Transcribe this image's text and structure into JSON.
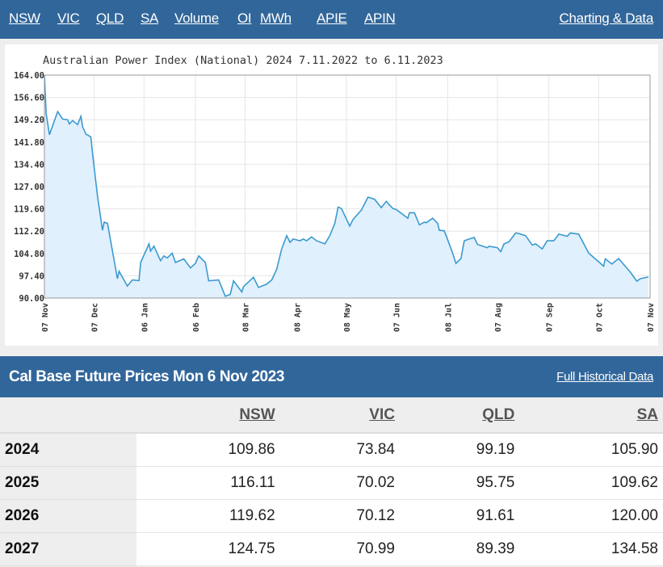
{
  "nav": {
    "items": [
      "NSW",
      "VIC",
      "QLD",
      "SA",
      "Volume",
      "OI",
      "MWh",
      "APIE",
      "APIN"
    ],
    "right_link": "Charting & Data"
  },
  "colors": {
    "nav_bg": "#31669a",
    "line": "#3a9ad0",
    "fill": "#e1f0fd"
  },
  "chart_data": {
    "type": "area",
    "title": "Australian Power Index (National) 2024 7.11.2022 to 6.11.2023",
    "xlabel": "",
    "ylabel": "",
    "xlim": [
      "2022-11-07",
      "2023-11-07"
    ],
    "ylim": [
      90,
      164
    ],
    "grid": true,
    "y_ticks": [
      "164.00",
      "156.60",
      "149.20",
      "141.80",
      "134.40",
      "127.00",
      "119.60",
      "112.20",
      "104.80",
      "97.40",
      "90.00"
    ],
    "x_ticks": [
      {
        "date": "2022-11-07",
        "label": "07 Nov"
      },
      {
        "date": "2022-12-07",
        "label": "07 Dec"
      },
      {
        "date": "2023-01-06",
        "label": "06 Jan"
      },
      {
        "date": "2023-02-06",
        "label": "06 Feb"
      },
      {
        "date": "2023-03-08",
        "label": "08 Mar"
      },
      {
        "date": "2023-04-08",
        "label": "08 Apr"
      },
      {
        "date": "2023-05-08",
        "label": "08 May"
      },
      {
        "date": "2023-06-07",
        "label": "07 Jun"
      },
      {
        "date": "2023-07-08",
        "label": "08 Jul"
      },
      {
        "date": "2023-08-07",
        "label": "07 Aug"
      },
      {
        "date": "2023-09-07",
        "label": "07 Sep"
      },
      {
        "date": "2023-10-07",
        "label": "07 Oct"
      },
      {
        "date": "2023-11-07",
        "label": "07 Nov"
      }
    ],
    "points": [
      [
        "2022-11-07",
        164.0
      ],
      [
        "2022-11-08",
        151.4
      ],
      [
        "2022-11-10",
        144.2
      ],
      [
        "2022-11-15",
        151.9
      ],
      [
        "2022-11-18",
        149.4
      ],
      [
        "2022-11-21",
        149.2
      ],
      [
        "2022-11-22",
        147.8
      ],
      [
        "2022-11-24",
        148.9
      ],
      [
        "2022-11-27",
        147.6
      ],
      [
        "2022-11-29",
        150.3
      ],
      [
        "2022-11-30",
        146.9
      ],
      [
        "2022-12-02",
        144.4
      ],
      [
        "2022-12-05",
        143.5
      ],
      [
        "2022-12-06",
        138.0
      ],
      [
        "2022-12-09",
        123.7
      ],
      [
        "2022-12-12",
        112.5
      ],
      [
        "2022-12-13",
        115.2
      ],
      [
        "2022-12-15",
        114.8
      ],
      [
        "2022-12-21",
        96.4
      ],
      [
        "2022-12-22",
        98.9
      ],
      [
        "2022-12-27",
        94.0
      ],
      [
        "2022-12-30",
        96.0
      ],
      [
        "2023-01-03",
        95.8
      ],
      [
        "2023-01-04",
        101.8
      ],
      [
        "2023-01-09",
        108.0
      ],
      [
        "2023-01-10",
        105.6
      ],
      [
        "2023-01-12",
        107.2
      ],
      [
        "2023-01-16",
        102.4
      ],
      [
        "2023-01-18",
        104.0
      ],
      [
        "2023-01-20",
        103.3
      ],
      [
        "2023-01-23",
        104.9
      ],
      [
        "2023-01-25",
        101.8
      ],
      [
        "2023-01-30",
        103.0
      ],
      [
        "2023-02-03",
        100.0
      ],
      [
        "2023-02-06",
        101.5
      ],
      [
        "2023-02-08",
        104.0
      ],
      [
        "2023-02-12",
        101.8
      ],
      [
        "2023-02-14",
        95.7
      ],
      [
        "2023-02-20",
        96.0
      ],
      [
        "2023-02-24",
        90.6
      ],
      [
        "2023-02-27",
        91.2
      ],
      [
        "2023-03-01",
        95.7
      ],
      [
        "2023-03-06",
        92.0
      ],
      [
        "2023-03-07",
        93.8
      ],
      [
        "2023-03-13",
        96.9
      ],
      [
        "2023-03-16",
        93.5
      ],
      [
        "2023-03-21",
        94.6
      ],
      [
        "2023-03-24",
        96.0
      ],
      [
        "2023-03-27",
        99.6
      ],
      [
        "2023-03-30",
        106.3
      ],
      [
        "2023-04-02",
        110.7
      ],
      [
        "2023-04-04",
        108.5
      ],
      [
        "2023-04-06",
        109.6
      ],
      [
        "2023-04-10",
        109.0
      ],
      [
        "2023-04-12",
        109.6
      ],
      [
        "2023-04-14",
        109.0
      ],
      [
        "2023-04-17",
        110.3
      ],
      [
        "2023-04-20",
        109.0
      ],
      [
        "2023-04-25",
        108.0
      ],
      [
        "2023-04-28",
        110.7
      ],
      [
        "2023-05-01",
        114.8
      ],
      [
        "2023-05-03",
        120.2
      ],
      [
        "2023-05-05",
        119.7
      ],
      [
        "2023-05-10",
        113.9
      ],
      [
        "2023-05-12",
        116.1
      ],
      [
        "2023-05-17",
        119.2
      ],
      [
        "2023-05-21",
        123.5
      ],
      [
        "2023-05-25",
        122.8
      ],
      [
        "2023-05-29",
        120.0
      ],
      [
        "2023-06-01",
        122.1
      ],
      [
        "2023-06-05",
        119.7
      ],
      [
        "2023-06-07",
        119.4
      ],
      [
        "2023-06-14",
        116.5
      ],
      [
        "2023-06-15",
        118.3
      ],
      [
        "2023-06-18",
        118.3
      ],
      [
        "2023-06-21",
        114.3
      ],
      [
        "2023-06-24",
        115.2
      ],
      [
        "2023-06-25",
        115.0
      ],
      [
        "2023-06-29",
        116.5
      ],
      [
        "2023-07-02",
        114.8
      ],
      [
        "2023-07-03",
        112.5
      ],
      [
        "2023-07-06",
        112.3
      ],
      [
        "2023-07-11",
        104.9
      ],
      [
        "2023-07-13",
        101.5
      ],
      [
        "2023-07-16",
        103.1
      ],
      [
        "2023-07-18",
        109.0
      ],
      [
        "2023-07-20",
        109.4
      ],
      [
        "2023-07-24",
        110.1
      ],
      [
        "2023-07-26",
        107.8
      ],
      [
        "2023-08-01",
        106.7
      ],
      [
        "2023-08-02",
        107.2
      ],
      [
        "2023-08-07",
        106.7
      ],
      [
        "2023-08-09",
        105.4
      ],
      [
        "2023-08-11",
        108.0
      ],
      [
        "2023-08-14",
        108.7
      ],
      [
        "2023-08-18",
        111.6
      ],
      [
        "2023-08-20",
        111.4
      ],
      [
        "2023-08-24",
        110.7
      ],
      [
        "2023-08-28",
        107.6
      ],
      [
        "2023-08-30",
        108.0
      ],
      [
        "2023-09-03",
        106.3
      ],
      [
        "2023-09-06",
        109.0
      ],
      [
        "2023-09-10",
        109.0
      ],
      [
        "2023-09-13",
        111.2
      ],
      [
        "2023-09-18",
        110.5
      ],
      [
        "2023-09-20",
        111.6
      ],
      [
        "2023-09-25",
        111.2
      ],
      [
        "2023-10-01",
        104.9
      ],
      [
        "2023-10-10",
        100.6
      ],
      [
        "2023-10-11",
        103.0
      ],
      [
        "2023-10-15",
        101.3
      ],
      [
        "2023-10-19",
        103.1
      ],
      [
        "2023-10-26",
        98.7
      ],
      [
        "2023-10-30",
        95.6
      ],
      [
        "2023-11-01",
        96.4
      ],
      [
        "2023-11-06",
        97.0
      ]
    ]
  },
  "prices": {
    "title": "Cal Base Future Prices Mon 6 Nov 2023",
    "link": "Full Historical Data",
    "columns": [
      "NSW",
      "VIC",
      "QLD",
      "SA"
    ],
    "rows": [
      {
        "year": "2024",
        "values": [
          "109.86",
          "73.84",
          "99.19",
          "105.90"
        ]
      },
      {
        "year": "2025",
        "values": [
          "116.11",
          "70.02",
          "95.75",
          "109.62"
        ]
      },
      {
        "year": "2026",
        "values": [
          "119.62",
          "70.12",
          "91.61",
          "120.00"
        ]
      },
      {
        "year": "2027",
        "values": [
          "124.75",
          "70.99",
          "89.39",
          "134.58"
        ]
      }
    ]
  }
}
